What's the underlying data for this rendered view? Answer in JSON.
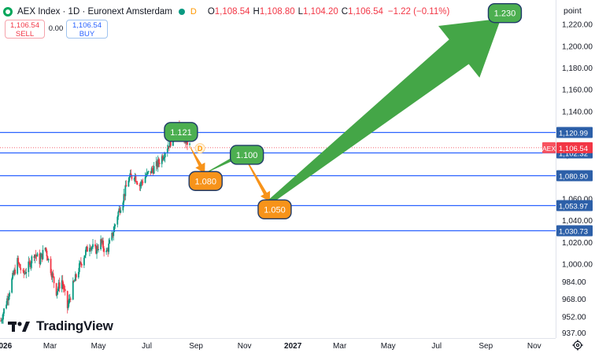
{
  "header": {
    "symbol": "AEX Index · 1D · Euronext Amsterdam",
    "open_label": "O",
    "open": "1,108.54",
    "high_label": "H",
    "high": "1,108.80",
    "low_label": "L",
    "low": "1,104.20",
    "close_label": "C",
    "close": "1,106.54",
    "change": "−1.22 (−0.11%)",
    "marker": "D"
  },
  "trade": {
    "sell_price": "1,106.54",
    "sell_label": "SELL",
    "spread": "0.00",
    "buy_price": "1,106.54",
    "buy_label": "BUY"
  },
  "brand": "TradingView",
  "colors": {
    "up": "#089981",
    "down": "#f23645",
    "level": "#2962ff",
    "bull": "#44a647",
    "bear": "#f7931a",
    "bull_box": "#4caf50"
  },
  "chart_data": {
    "type": "line",
    "y_axis_title": "point",
    "ylim": [
      932,
      1242
    ],
    "y_ticks": [
      937,
      952,
      968,
      984,
      1000,
      1020,
      1040,
      1060,
      1080,
      1100,
      1120,
      1140,
      1160,
      1180,
      1200,
      1220
    ],
    "y_tick_labels": [
      "937.00",
      "952.00",
      "968.00",
      "984.00",
      "1,000.00",
      "1,020.00",
      "1,040.00",
      "1,060.00",
      "1,080.00",
      "1,100.00",
      "1,120.00",
      "1,140.00",
      "1,160.00",
      "1,180.00",
      "1,200.00",
      "1,220.00"
    ],
    "xlim": [
      "2025-12-28",
      "2027-11-28"
    ],
    "x_ticks": [
      {
        "date": "2026-01-01",
        "label": "2026",
        "bold": true
      },
      {
        "date": "2026-03-01",
        "label": "Mar"
      },
      {
        "date": "2026-05-01",
        "label": "May"
      },
      {
        "date": "2026-07-01",
        "label": "Jul"
      },
      {
        "date": "2026-09-01",
        "label": "Sep"
      },
      {
        "date": "2026-11-01",
        "label": "Nov"
      },
      {
        "date": "2027-01-01",
        "label": "2027",
        "bold": true
      },
      {
        "date": "2027-03-01",
        "label": "Mar"
      },
      {
        "date": "2027-05-01",
        "label": "May"
      },
      {
        "date": "2027-07-01",
        "label": "Jul"
      },
      {
        "date": "2027-09-01",
        "label": "Sep"
      },
      {
        "date": "2027-11-01",
        "label": "Nov"
      }
    ],
    "price_path": [
      [
        "2025-12-29",
        948
      ],
      [
        "2026-01-05",
        965
      ],
      [
        "2026-01-12",
        985
      ],
      [
        "2026-01-19",
        1002
      ],
      [
        "2026-01-26",
        990
      ],
      [
        "2026-02-02",
        998
      ],
      [
        "2026-02-09",
        1010
      ],
      [
        "2026-02-16",
        1003
      ],
      [
        "2026-02-23",
        1015
      ],
      [
        "2026-03-02",
        995
      ],
      [
        "2026-03-09",
        975
      ],
      [
        "2026-03-16",
        985
      ],
      [
        "2026-03-23",
        960
      ],
      [
        "2026-03-30",
        980
      ],
      [
        "2026-04-06",
        995
      ],
      [
        "2026-04-13",
        1008
      ],
      [
        "2026-04-20",
        1018
      ],
      [
        "2026-04-27",
        1012
      ],
      [
        "2026-05-04",
        1020
      ],
      [
        "2026-05-11",
        1010
      ],
      [
        "2026-05-18",
        1025
      ],
      [
        "2026-05-25",
        1045
      ],
      [
        "2026-06-01",
        1060
      ],
      [
        "2026-06-08",
        1078
      ],
      [
        "2026-06-15",
        1082
      ],
      [
        "2026-06-22",
        1072
      ],
      [
        "2026-06-29",
        1080
      ],
      [
        "2026-07-06",
        1085
      ],
      [
        "2026-07-13",
        1090
      ],
      [
        "2026-07-20",
        1098
      ],
      [
        "2026-07-27",
        1108
      ],
      [
        "2026-08-03",
        1116
      ],
      [
        "2026-08-10",
        1124
      ],
      [
        "2026-08-17",
        1115
      ],
      [
        "2026-08-24",
        1108
      ]
    ],
    "horizontal_levels": [
      1120.99,
      1102.32,
      1080.9,
      1053.97,
      1030.73
    ],
    "horizontal_level_labels": [
      "1,120.99",
      "1,102.32",
      "1,080.90",
      "1,053.97",
      "1,030.73"
    ],
    "current_price": 1106.54,
    "current_price_label": "1,106.54",
    "current_price_tag": "AEX",
    "scenario_path": [
      [
        "2026-08-24",
        1108
      ],
      [
        "2026-09-12",
        1083
      ],
      [
        "2026-10-30",
        1101
      ],
      [
        "2026-12-03",
        1057
      ],
      [
        "2027-09-20",
        1225
      ]
    ],
    "annotations": [
      {
        "text": "1.121",
        "x": "2026-08-13",
        "y": 1121,
        "kind": "bull"
      },
      {
        "text": "1.100",
        "x": "2026-11-04",
        "y": 1100,
        "kind": "bull"
      },
      {
        "text": "1.080",
        "x": "2026-09-13",
        "y": 1076,
        "kind": "bear"
      },
      {
        "text": "1.050",
        "x": "2026-12-09",
        "y": 1050,
        "kind": "bear"
      },
      {
        "text": "1.230",
        "x": "2027-09-25",
        "y": 1230,
        "kind": "bull"
      }
    ],
    "event_marker": {
      "text": "D",
      "x": "2026-09-06",
      "y": 1106
    },
    "grid": false,
    "legend": "none"
  }
}
